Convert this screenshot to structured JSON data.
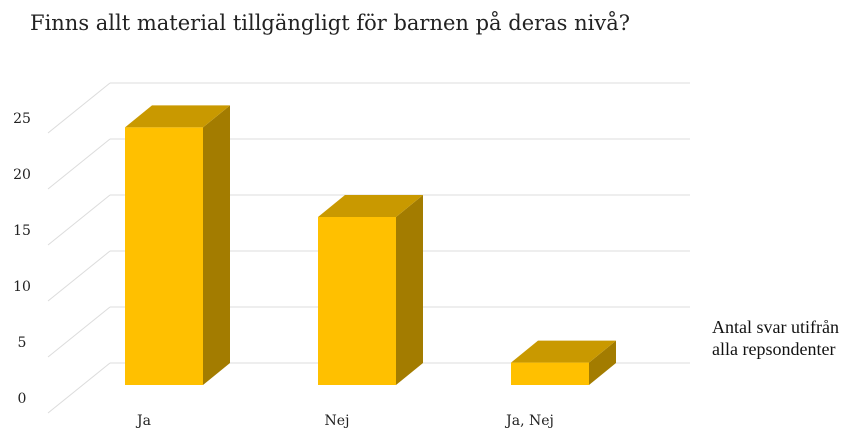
{
  "chart_data": {
    "type": "bar3d",
    "title": "Finns allt material tillgängligt för barnen på deras nivå?",
    "categories": [
      "Ja",
      "Nej",
      "Ja, Nej"
    ],
    "series": [
      {
        "name": "Antal svar utifrån alla repsondenter",
        "color": "#ffc000",
        "values": [
          23,
          15,
          2
        ]
      }
    ],
    "ylim": [
      0,
      25
    ],
    "yticks": [
      0,
      5,
      10,
      15,
      20,
      25
    ],
    "grid": true
  }
}
